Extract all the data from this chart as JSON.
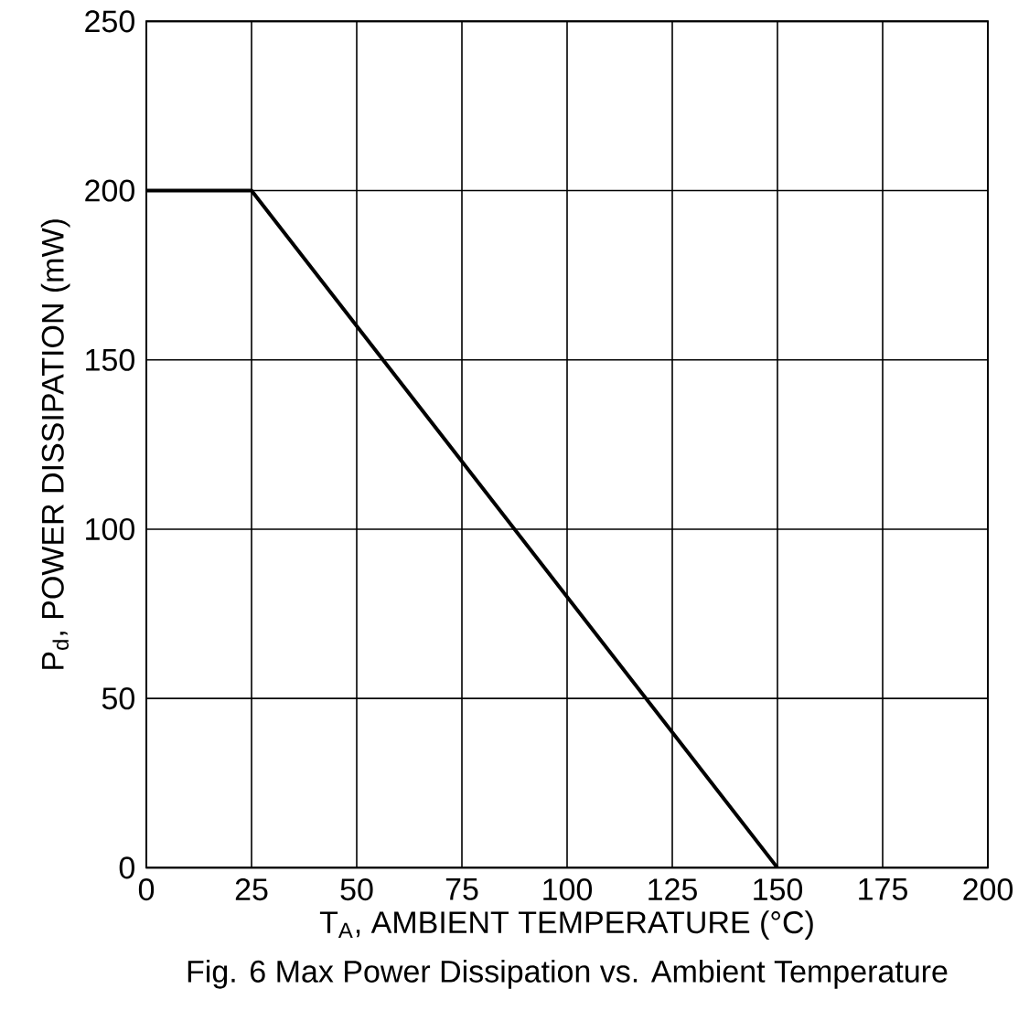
{
  "chart_data": {
    "type": "line",
    "xlabel": "T$_{A}$, AMBIENT TEMPERATURE (°C)",
    "ylabel": "P$_{d}$, POWER DISSIPATION (mW)",
    "annotations": [
      "Fig. 6  Max Power Dissipation vs. Ambient Temperature"
    ],
    "x": [
      0,
      25,
      150
    ],
    "series": [
      {
        "color": "#000000",
        "values": [
          200,
          200,
          0
        ]
      }
    ],
    "xlim": [
      0,
      200
    ],
    "ylim": [
      0,
      250
    ],
    "xticks": [
      0,
      25,
      50,
      75,
      100,
      125,
      150,
      175,
      200
    ],
    "yticks": [
      0,
      50,
      100,
      150,
      200,
      250
    ],
    "grid": true,
    "line_style": "solid",
    "marker": "none"
  }
}
